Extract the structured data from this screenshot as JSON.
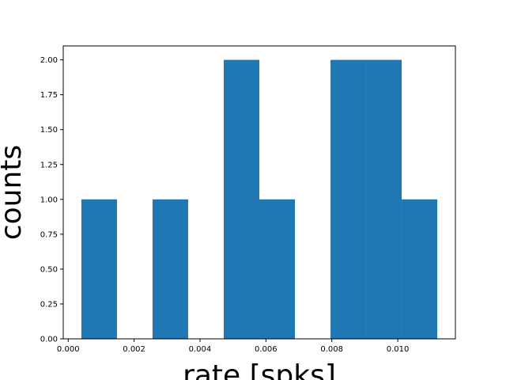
{
  "chart_data": {
    "type": "bar",
    "subtype": "histogram",
    "xlabel": "rate [spks]",
    "ylabel": "counts",
    "xlim": [
      -0.00015,
      0.01175
    ],
    "ylim": [
      0,
      2.1
    ],
    "bar_color": "#1f77b4",
    "grid": false,
    "bins": [
      {
        "x0": 0.0004,
        "x1": 0.00148,
        "count": 1
      },
      {
        "x0": 0.00148,
        "x1": 0.00256,
        "count": 0
      },
      {
        "x0": 0.00256,
        "x1": 0.00364,
        "count": 1
      },
      {
        "x0": 0.00364,
        "x1": 0.00472,
        "count": 0
      },
      {
        "x0": 0.00472,
        "x1": 0.0058,
        "count": 2
      },
      {
        "x0": 0.0058,
        "x1": 0.00688,
        "count": 1
      },
      {
        "x0": 0.00688,
        "x1": 0.00796,
        "count": 0
      },
      {
        "x0": 0.00796,
        "x1": 0.00904,
        "count": 2
      },
      {
        "x0": 0.00904,
        "x1": 0.01012,
        "count": 2
      },
      {
        "x0": 0.01012,
        "x1": 0.0112,
        "count": 1
      }
    ],
    "xticks": [
      {
        "value": 0.0,
        "label": "0.000"
      },
      {
        "value": 0.002,
        "label": "0.002"
      },
      {
        "value": 0.004,
        "label": "0.004"
      },
      {
        "value": 0.006,
        "label": "0.006"
      },
      {
        "value": 0.008,
        "label": "0.008"
      },
      {
        "value": 0.01,
        "label": "0.010"
      }
    ],
    "yticks": [
      {
        "value": 0.0,
        "label": "0.00"
      },
      {
        "value": 0.25,
        "label": "0.25"
      },
      {
        "value": 0.5,
        "label": "0.50"
      },
      {
        "value": 0.75,
        "label": "0.75"
      },
      {
        "value": 1.0,
        "label": "1.00"
      },
      {
        "value": 1.25,
        "label": "1.25"
      },
      {
        "value": 1.5,
        "label": "1.50"
      },
      {
        "value": 1.75,
        "label": "1.75"
      },
      {
        "value": 2.0,
        "label": "2.00"
      }
    ]
  }
}
